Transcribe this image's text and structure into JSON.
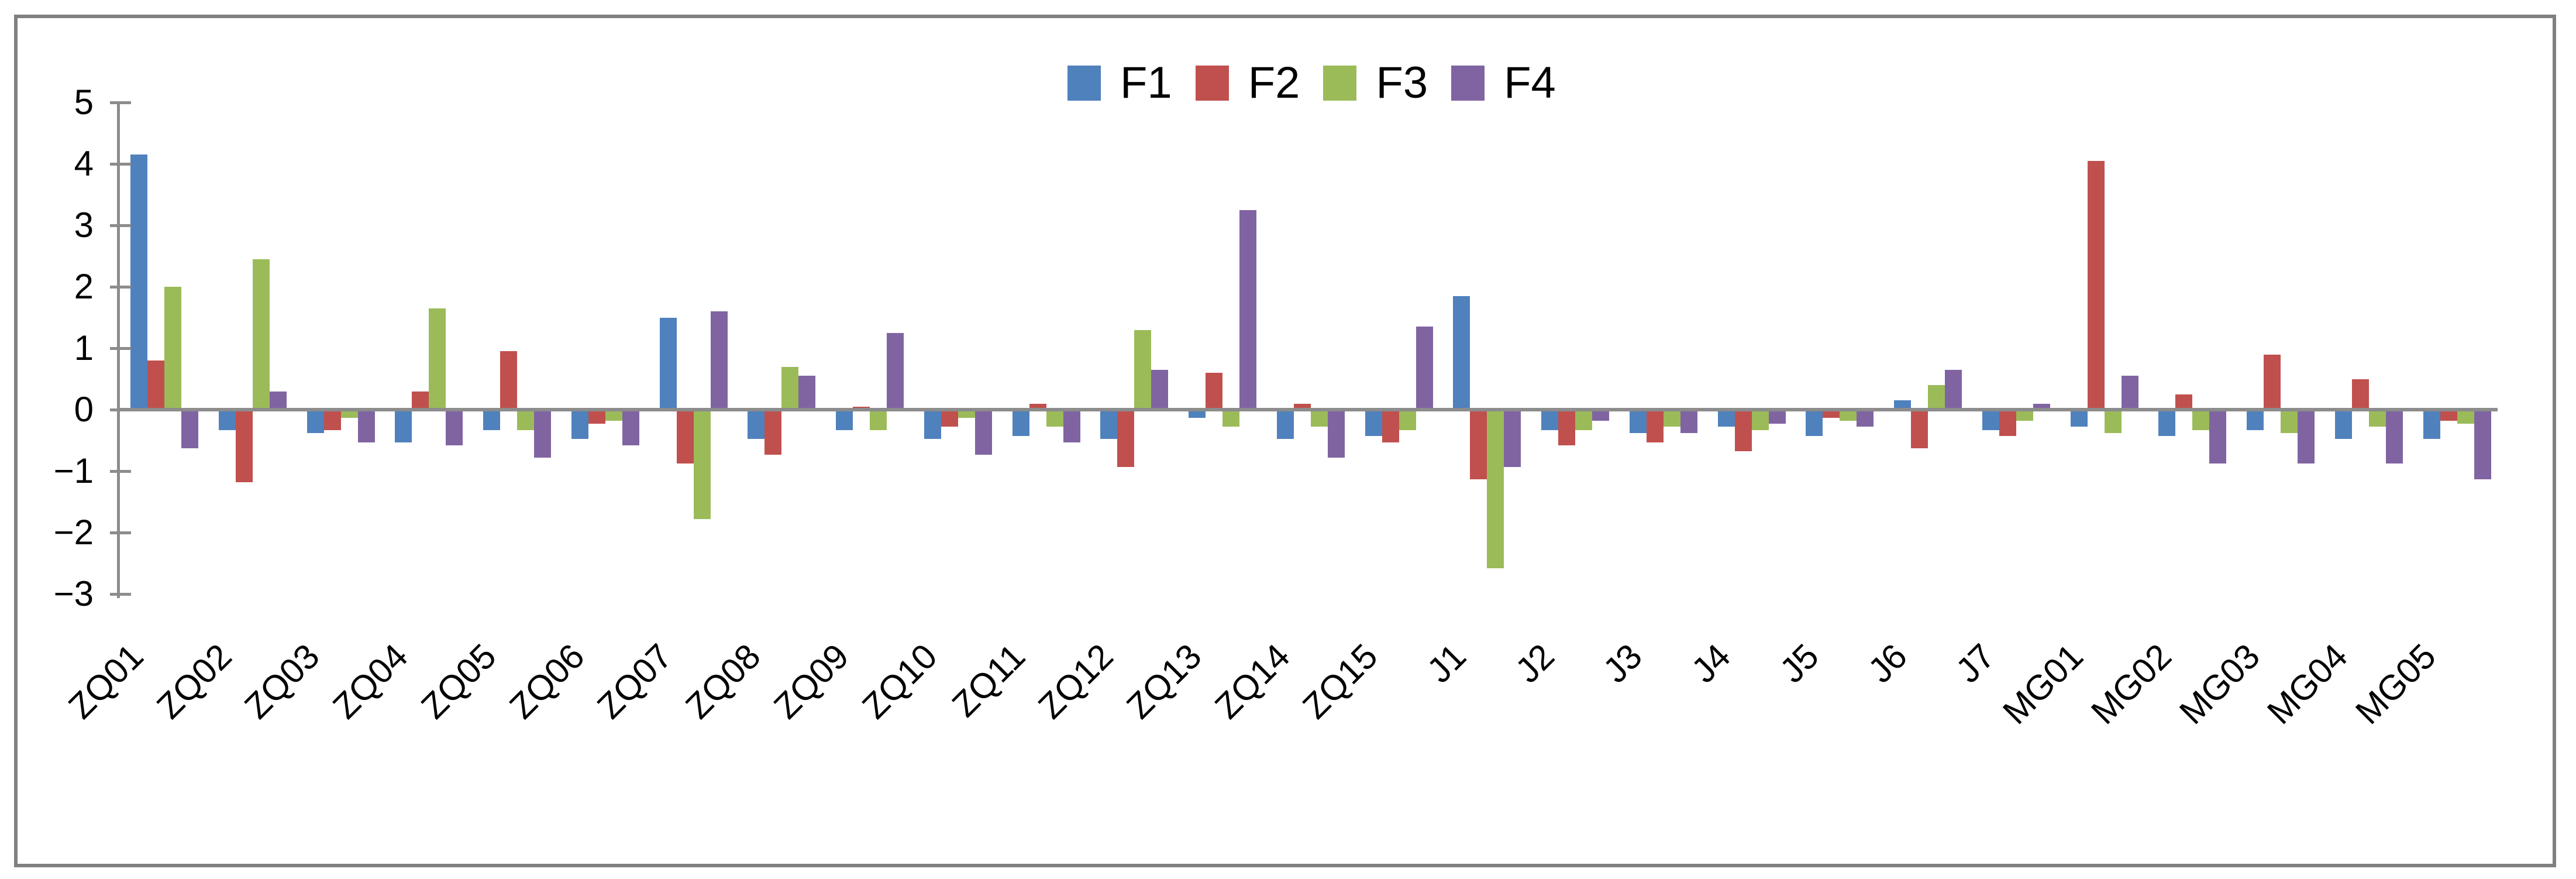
{
  "chart_data": {
    "type": "bar",
    "title": "",
    "xlabel": "",
    "ylabel": "",
    "categories": [
      "ZQ01",
      "ZQ02",
      "ZQ03",
      "ZQ04",
      "ZQ05",
      "ZQ06",
      "ZQ07",
      "ZQ08",
      "ZQ09",
      "ZQ10",
      "ZQ11",
      "ZQ12",
      "ZQ13",
      "ZQ14",
      "ZQ15",
      "J1",
      "J2",
      "J3",
      "J4",
      "J5",
      "J6",
      "J7",
      "MG01",
      "MG02",
      "MG03",
      "MG04",
      "MG05"
    ],
    "series": [
      {
        "name": "F1",
        "color": "#4F81BD",
        "values": [
          4.15,
          -0.3,
          -0.35,
          -0.5,
          -0.3,
          -0.45,
          1.5,
          -0.45,
          -0.3,
          -0.45,
          -0.4,
          -0.45,
          -0.1,
          -0.45,
          -0.4,
          1.85,
          -0.3,
          -0.35,
          -0.25,
          -0.4,
          0.15,
          -0.3,
          -0.25,
          -0.4,
          -0.3,
          -0.45,
          -0.45
        ]
      },
      {
        "name": "F2",
        "color": "#C0504D",
        "values": [
          0.8,
          -1.15,
          -0.3,
          0.3,
          0.95,
          -0.2,
          -0.85,
          -0.7,
          0.05,
          -0.25,
          0.1,
          -0.9,
          0.6,
          0.1,
          -0.5,
          -1.1,
          -0.55,
          -0.5,
          -0.65,
          -0.1,
          -0.6,
          -0.4,
          4.05,
          0.25,
          0.9,
          0.5,
          -0.15
        ]
      },
      {
        "name": "F3",
        "color": "#9BBB59",
        "values": [
          2.0,
          2.45,
          -0.1,
          1.65,
          -0.3,
          -0.15,
          -1.75,
          0.7,
          -0.3,
          -0.1,
          -0.25,
          1.3,
          -0.25,
          -0.25,
          -0.3,
          -2.55,
          -0.3,
          -0.25,
          -0.3,
          -0.15,
          0.4,
          -0.15,
          -0.35,
          -0.3,
          -0.35,
          -0.25,
          -0.2
        ]
      },
      {
        "name": "F4",
        "color": "#8064A2",
        "values": [
          -0.6,
          0.3,
          -0.5,
          -0.55,
          -0.75,
          -0.55,
          1.6,
          0.55,
          1.25,
          -0.7,
          -0.5,
          0.65,
          3.25,
          -0.75,
          1.35,
          -0.9,
          -0.15,
          -0.35,
          -0.2,
          -0.25,
          0.65,
          0.1,
          0.55,
          -0.85,
          -0.85,
          -0.85,
          -1.1
        ]
      }
    ],
    "yticks": [
      5,
      4,
      3,
      2,
      1,
      0,
      -1,
      -2,
      -3
    ],
    "ylim": [
      -3,
      5
    ],
    "grid": false,
    "legend_position": "top-center",
    "legend_labels": [
      "F1",
      "F2",
      "F3",
      "F4"
    ],
    "colors": {
      "axis": "#8C8C8C",
      "outer_border": "#808080",
      "text": "#000000",
      "background": "#FFFFFF"
    }
  }
}
